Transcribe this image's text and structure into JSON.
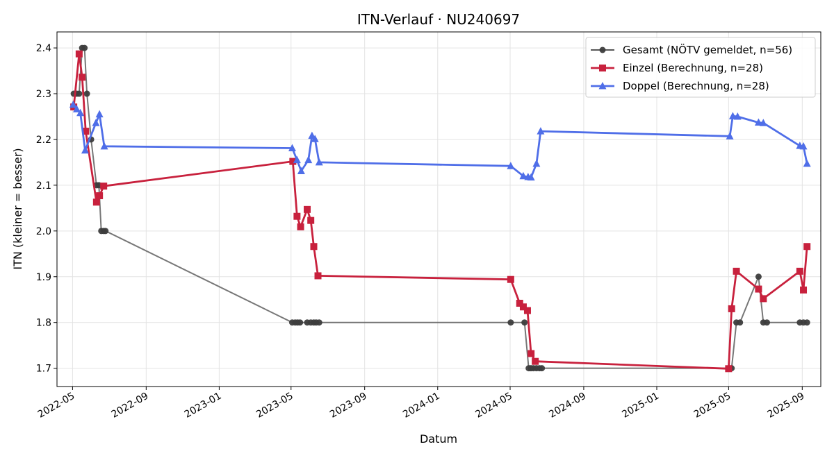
{
  "chart_data": {
    "type": "line",
    "title": "ITN-Verlauf · NU240697",
    "xlabel": "Datum",
    "ylabel": "ITN  (kleiner = besser)",
    "ylim": [
      1.66,
      2.435
    ],
    "xlim": [
      "2022-04-05",
      "2025-10-02"
    ],
    "yticks": [
      1.7,
      1.8,
      1.9,
      2.0,
      2.1,
      2.2,
      2.3,
      2.4
    ],
    "xticks": [
      "2022-05",
      "2022-09",
      "2023-01",
      "2023-05",
      "2023-09",
      "2024-01",
      "2024-05",
      "2024-09",
      "2025-01",
      "2025-05",
      "2025-09"
    ],
    "grid": true,
    "legend_position": "top-right",
    "series": [
      {
        "name": "Gesamt (NÖTV gemeldet, n=56)",
        "color": "#555555",
        "marker": "circle",
        "points": [
          [
            "2022-05-03",
            2.3
          ],
          [
            "2022-05-08",
            2.3
          ],
          [
            "2022-05-12",
            2.3
          ],
          [
            "2022-05-17",
            2.4
          ],
          [
            "2022-05-21",
            2.4
          ],
          [
            "2022-05-25",
            2.3
          ],
          [
            "2022-06-01",
            2.2
          ],
          [
            "2022-06-10",
            2.1
          ],
          [
            "2022-06-14",
            2.1
          ],
          [
            "2022-06-18",
            2.0
          ],
          [
            "2022-06-22",
            2.0
          ],
          [
            "2022-06-25",
            2.0
          ],
          [
            "2023-05-03",
            1.8
          ],
          [
            "2023-05-08",
            1.8
          ],
          [
            "2023-05-12",
            1.8
          ],
          [
            "2023-05-16",
            1.8
          ],
          [
            "2023-05-28",
            1.8
          ],
          [
            "2023-06-03",
            1.8
          ],
          [
            "2023-06-08",
            1.8
          ],
          [
            "2023-06-12",
            1.8
          ],
          [
            "2023-06-17",
            1.8
          ],
          [
            "2024-05-02",
            1.8
          ],
          [
            "2024-05-25",
            1.8
          ],
          [
            "2024-06-01",
            1.7
          ],
          [
            "2024-06-05",
            1.7
          ],
          [
            "2024-06-09",
            1.7
          ],
          [
            "2024-06-14",
            1.7
          ],
          [
            "2024-06-19",
            1.7
          ],
          [
            "2024-06-23",
            1.7
          ],
          [
            "2025-05-02",
            1.7
          ],
          [
            "2025-05-06",
            1.7
          ],
          [
            "2025-05-14",
            1.8
          ],
          [
            "2025-05-20",
            1.8
          ],
          [
            "2025-06-20",
            1.9
          ],
          [
            "2025-06-28",
            1.8
          ],
          [
            "2025-07-04",
            1.8
          ],
          [
            "2025-08-28",
            1.8
          ],
          [
            "2025-09-03",
            1.8
          ],
          [
            "2025-09-09",
            1.8
          ]
        ]
      },
      {
        "name": "Einzel (Berechnung, n=28)",
        "color": "#c8213d",
        "marker": "square",
        "points": [
          [
            "2022-05-03",
            2.271
          ],
          [
            "2022-05-12",
            2.387
          ],
          [
            "2022-05-17",
            2.336
          ],
          [
            "2022-05-23",
            2.218
          ],
          [
            "2022-06-10",
            2.063
          ],
          [
            "2022-06-15",
            2.077
          ],
          [
            "2022-06-22",
            2.098
          ],
          [
            "2023-05-04",
            2.152
          ],
          [
            "2023-05-11",
            2.032
          ],
          [
            "2023-05-17",
            2.009
          ],
          [
            "2023-05-28",
            2.047
          ],
          [
            "2023-06-03",
            2.023
          ],
          [
            "2023-06-08",
            1.966
          ],
          [
            "2023-06-15",
            1.902
          ],
          [
            "2024-05-02",
            1.894
          ],
          [
            "2024-05-17",
            1.842
          ],
          [
            "2024-05-23",
            1.834
          ],
          [
            "2024-05-30",
            1.826
          ],
          [
            "2024-06-05",
            1.732
          ],
          [
            "2024-06-12",
            1.715
          ],
          [
            "2025-05-01",
            1.699
          ],
          [
            "2025-05-06",
            1.83
          ],
          [
            "2025-05-14",
            1.912
          ],
          [
            "2025-06-20",
            1.873
          ],
          [
            "2025-06-28",
            1.852
          ],
          [
            "2025-08-28",
            1.912
          ],
          [
            "2025-09-03",
            1.871
          ],
          [
            "2025-09-09",
            1.966
          ]
        ]
      },
      {
        "name": "Doppel (Berechnung, n=28)",
        "color": "#4f6ee8",
        "marker": "triangle",
        "points": [
          [
            "2022-05-02",
            2.276
          ],
          [
            "2022-05-08",
            2.266
          ],
          [
            "2022-05-14",
            2.258
          ],
          [
            "2022-05-22",
            2.176
          ],
          [
            "2022-06-09",
            2.236
          ],
          [
            "2022-06-15",
            2.255
          ],
          [
            "2022-06-23",
            2.185
          ],
          [
            "2023-05-03",
            2.181
          ],
          [
            "2023-05-11",
            2.155
          ],
          [
            "2023-05-18",
            2.131
          ],
          [
            "2023-05-30",
            2.155
          ],
          [
            "2023-06-05",
            2.208
          ],
          [
            "2023-06-10",
            2.201
          ],
          [
            "2023-06-17",
            2.15
          ],
          [
            "2024-05-02",
            2.142
          ],
          [
            "2024-05-23",
            2.12
          ],
          [
            "2024-05-31",
            2.118
          ],
          [
            "2024-06-05",
            2.117
          ],
          [
            "2024-06-14",
            2.147
          ],
          [
            "2024-06-21",
            2.218
          ],
          [
            "2025-05-03",
            2.207
          ],
          [
            "2025-05-08",
            2.251
          ],
          [
            "2025-05-16",
            2.25
          ],
          [
            "2025-06-20",
            2.237
          ],
          [
            "2025-06-28",
            2.236
          ],
          [
            "2025-08-28",
            2.186
          ],
          [
            "2025-09-03",
            2.185
          ],
          [
            "2025-09-09",
            2.147
          ]
        ]
      }
    ]
  }
}
